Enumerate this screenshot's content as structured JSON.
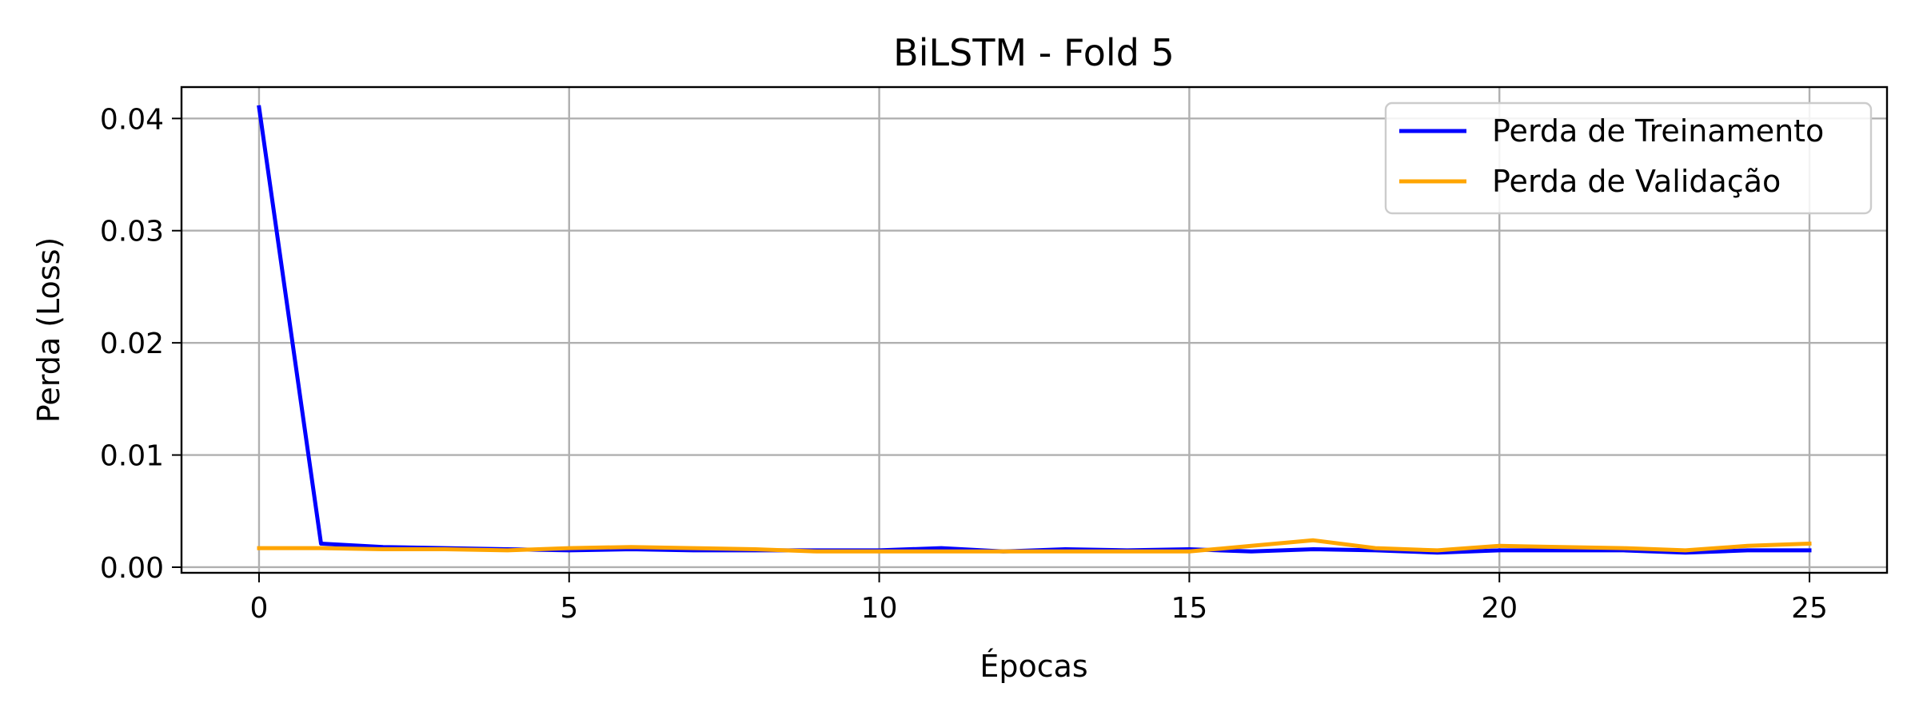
{
  "chart_data": {
    "type": "line",
    "title": "BiLSTM - Fold 5",
    "xlabel": "Épocas",
    "ylabel": "Perda (Loss)",
    "xlim": [
      -1.25,
      26.25
    ],
    "ylim": [
      -0.0005,
      0.0428
    ],
    "xticks": [
      0,
      5,
      10,
      15,
      20,
      25
    ],
    "xtick_labels": [
      "0",
      "5",
      "10",
      "15",
      "20",
      "25"
    ],
    "yticks": [
      0.0,
      0.01,
      0.02,
      0.03,
      0.04
    ],
    "ytick_labels": [
      "0.00",
      "0.01",
      "0.02",
      "0.03",
      "0.04"
    ],
    "grid": true,
    "legend_position": "top-right",
    "x": [
      0,
      1,
      2,
      3,
      4,
      5,
      6,
      7,
      8,
      9,
      10,
      11,
      12,
      13,
      14,
      15,
      16,
      17,
      18,
      19,
      20,
      21,
      22,
      23,
      24,
      25
    ],
    "series": [
      {
        "name": "Perda de Treinamento",
        "color": "#0000ff",
        "values": [
          0.041,
          0.0021,
          0.0018,
          0.0017,
          0.0016,
          0.0015,
          0.0016,
          0.0015,
          0.0015,
          0.0015,
          0.0015,
          0.0017,
          0.0014,
          0.0016,
          0.0015,
          0.0016,
          0.0014,
          0.0016,
          0.0015,
          0.0013,
          0.0015,
          0.0015,
          0.0015,
          0.0013,
          0.0015,
          0.0015
        ]
      },
      {
        "name": "Perda de Validação",
        "color": "#ffa500",
        "values": [
          0.0017,
          0.0017,
          0.0016,
          0.0016,
          0.0015,
          0.0017,
          0.0018,
          0.0017,
          0.0016,
          0.0014,
          0.0014,
          0.0014,
          0.0014,
          0.0014,
          0.0014,
          0.0014,
          0.0019,
          0.0024,
          0.0017,
          0.0015,
          0.0019,
          0.0018,
          0.0017,
          0.0015,
          0.0019,
          0.0021
        ]
      }
    ]
  }
}
